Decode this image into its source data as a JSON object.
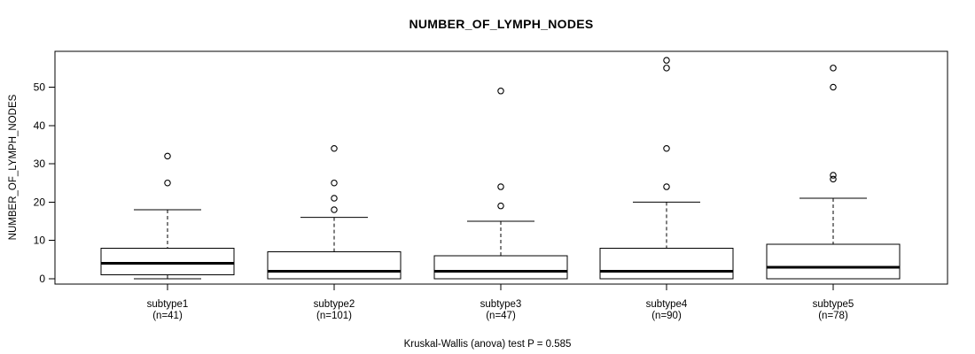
{
  "chart_data": {
    "type": "boxplot",
    "title": "NUMBER_OF_LYMPH_NODES",
    "ylabel": "NUMBER_OF_LYMPH_NODES",
    "caption": "Kruskal-Wallis (anova) test P = 0.585",
    "yticks": [
      0,
      10,
      20,
      30,
      40,
      50
    ],
    "ylim": [
      -1.4,
      59.35
    ],
    "grid": false,
    "legend": "none",
    "groups": [
      {
        "label": "subtype1",
        "n_label": "(n=41)",
        "low": 0,
        "q1": 1,
        "median": 4,
        "q3": 8,
        "high": 18,
        "outliers": [
          25,
          32
        ]
      },
      {
        "label": "subtype2",
        "n_label": "(n=101)",
        "low": 0,
        "q1": 0,
        "median": 2,
        "q3": 7,
        "high": 16,
        "outliers": [
          18,
          21,
          25,
          34
        ]
      },
      {
        "label": "subtype3",
        "n_label": "(n=47)",
        "low": 0,
        "q1": 0,
        "median": 2,
        "q3": 6,
        "high": 15,
        "outliers": [
          19,
          24,
          49
        ]
      },
      {
        "label": "subtype4",
        "n_label": "(n=90)",
        "low": 0,
        "q1": 0,
        "median": 2,
        "q3": 8,
        "high": 20,
        "outliers": [
          24,
          34,
          55,
          57
        ]
      },
      {
        "label": "subtype5",
        "n_label": "(n=78)",
        "low": 0,
        "q1": 0,
        "median": 3,
        "q3": 9,
        "high": 21,
        "outliers": [
          26,
          27,
          50,
          55
        ]
      }
    ],
    "colors": {
      "stroke": "#000000",
      "box_fill": "#ffffff",
      "background": "#ffffff"
    }
  }
}
